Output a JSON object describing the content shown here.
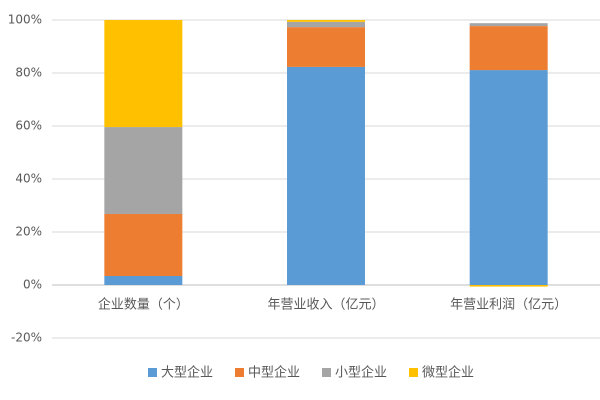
{
  "chart_data": {
    "type": "stacked_bar",
    "categories": [
      "企业数量（个）",
      "年营业收入（亿元）",
      "年营业利润（亿元）"
    ],
    "series": [
      {
        "name": "大型企业",
        "color": "#5b9bd5",
        "values": [
          3.4,
          82.3,
          81.1
        ]
      },
      {
        "name": "中型企业",
        "color": "#ed7d31",
        "values": [
          23.4,
          15,
          16.6
        ]
      },
      {
        "name": "小型企业",
        "color": "#a5a5a5",
        "values": [
          32.8,
          2,
          1.1
        ]
      },
      {
        "name": "微型企业",
        "color": "#ffc000",
        "values": [
          40.4,
          0.7,
          -0.6
        ]
      }
    ],
    "ylim": [
      -20,
      100
    ],
    "yticks": [
      {
        "value": -20,
        "label": "-20%"
      },
      {
        "value": 0,
        "label": "0%"
      },
      {
        "value": 20,
        "label": "20%"
      },
      {
        "value": 40,
        "label": "40%"
      },
      {
        "value": 60,
        "label": "60%"
      },
      {
        "value": 80,
        "label": "80%"
      },
      {
        "value": 100,
        "label": "100%"
      }
    ],
    "grid": true,
    "legend": "bottom"
  }
}
